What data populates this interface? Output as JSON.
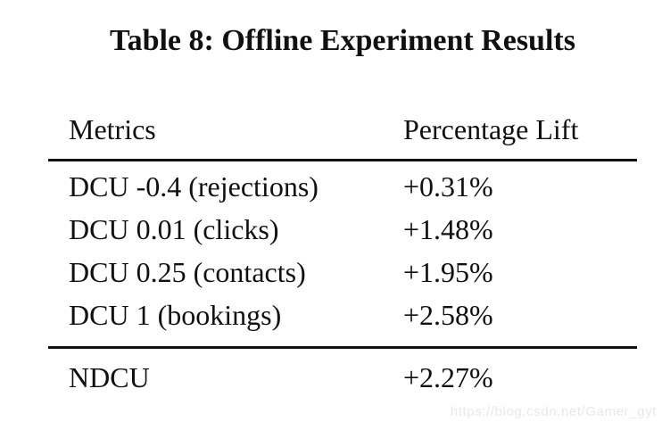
{
  "caption": "Table 8: Offline Experiment Results",
  "table": {
    "headers": {
      "metrics": "Metrics",
      "lift": "Percentage Lift"
    },
    "rows": [
      {
        "metric": "DCU -0.4 (rejections)",
        "lift": "+0.31%"
      },
      {
        "metric": "DCU 0.01 (clicks)",
        "lift": "+1.48%"
      },
      {
        "metric": "DCU 0.25 (contacts)",
        "lift": "+1.95%"
      },
      {
        "metric": "DCU 1 (bookings)",
        "lift": "+2.58%"
      }
    ],
    "summary": {
      "metric": "NDCU",
      "lift": "+2.27%"
    }
  },
  "watermark": "https://blog.csdn.net/Gamer_gyt",
  "colors": {
    "background": "#ffffff",
    "text": "#101010",
    "rule": "#101010",
    "watermark": "#e8e8ea"
  }
}
